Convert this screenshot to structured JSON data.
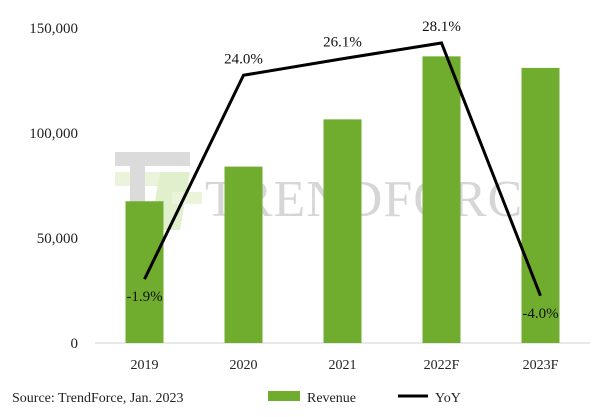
{
  "chart_data": {
    "type": "bar+line",
    "categories": [
      "2019",
      "2020",
      "2021",
      "2022F",
      "2023F"
    ],
    "series": [
      {
        "name": "Revenue",
        "kind": "bar",
        "axis": "left",
        "color": "#70ad2f",
        "values": [
          67500,
          84000,
          106500,
          136500,
          131000
        ]
      },
      {
        "name": "YoY",
        "kind": "line",
        "axis": "right",
        "color": "#000000",
        "values": [
          -1.9,
          24.0,
          26.1,
          28.1,
          -4.0
        ],
        "labels": [
          "-1.9%",
          "24.0%",
          "26.1%",
          "28.1%",
          "-4.0%"
        ]
      }
    ],
    "y_axis": {
      "min": 0,
      "max": 150000,
      "ticks": [
        0,
        50000,
        100000,
        150000
      ],
      "tick_labels": [
        "0",
        "50,000",
        "100,000",
        "150,000"
      ]
    },
    "y2_axis": {
      "min": -10,
      "max": 30,
      "visible": false
    },
    "title": "",
    "xlabel": "",
    "ylabel": "",
    "grid": false,
    "legend": {
      "position": "bottom",
      "entries": [
        "Revenue",
        "YoY"
      ]
    }
  },
  "source": "Source: TrendForce, Jan. 2023",
  "watermark": "TRENDFORCE"
}
